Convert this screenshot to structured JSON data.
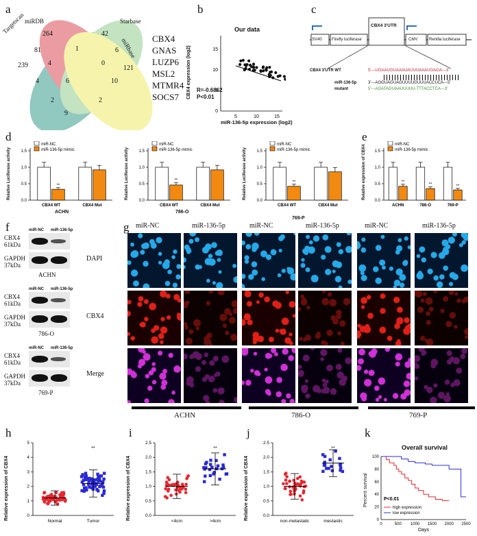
{
  "panels": {
    "a": "a",
    "b": "b",
    "c": "c",
    "d": "d",
    "e": "e",
    "f": "f",
    "g": "g",
    "h": "h",
    "i": "i",
    "j": "j",
    "k": "k"
  },
  "venn": {
    "sets": [
      "Targetscan",
      "miRDB",
      "Starbase",
      "miRbase"
    ],
    "set_colors": [
      "#4fa89a",
      "#e0606a",
      "#9fd39c",
      "#f2ee7a"
    ],
    "counts": [
      "264",
      "42",
      "239",
      "81",
      "1",
      "6",
      "121",
      "4",
      "0",
      "4",
      "6",
      "10",
      "2",
      "2",
      "9"
    ],
    "genes": [
      "CBX4",
      "GNAS",
      "LUZP6",
      "MSL2",
      "MTMR4",
      "SOCS7"
    ]
  },
  "panel_b": {
    "title": "Our data",
    "ylabel": "CBX4 expression (log2)",
    "xlabel": "miR-136-5p expression (log2)",
    "r": "R=-0.6862",
    "p": "P<0.01",
    "xticks": [
      "5",
      "10",
      "15"
    ],
    "yticks": [
      "0",
      "5",
      "10",
      "15"
    ]
  },
  "panel_c": {
    "labels": [
      "SV40",
      "Firefly luciferase",
      "CBX4 3'UTR",
      "CMV",
      "Renilla luciferase"
    ],
    "wt_label": "CBX4 3'UTR  WT",
    "wt_seq": "5'---UGAAUGUAAAUAUUUAAAUGAGA---3'",
    "mir_label": "miR-136-5p",
    "mir_seq": "3'---AGGUAGUAGUUUUGUUUACCUCA---5'",
    "mut_label": "mutant",
    "mut_seq": "5'---AGATAGUAAUUUUU-TTTACCTCA---3'"
  },
  "legend": {
    "nc": "miR-NC",
    "mimic": "miR-136-5p mimic"
  },
  "colors": {
    "nc": "#ffffff",
    "mimic": "#f28a12",
    "red_dot": "#e8262f",
    "blue_dot": "#2929d6"
  },
  "panel_d": [
    {
      "cell": "ACHN",
      "ylabel": "Relative Luciferase activity",
      "yticks": [
        "0.0",
        "0.5",
        "1.0",
        "1.5"
      ],
      "cats": [
        "CBX4 WT",
        "CBX4 Mut"
      ],
      "nc": [
        1.0,
        1.0
      ],
      "mimic": [
        0.33,
        0.92
      ],
      "sig": "**"
    },
    {
      "cell": "786-O",
      "ylabel": "Relative Luciferase activity",
      "yticks": [
        "0.0",
        "0.5",
        "1.0",
        "1.5"
      ],
      "cats": [
        "CBX4 WT",
        "CBX4 Mut"
      ],
      "nc": [
        1.0,
        1.0
      ],
      "mimic": [
        0.46,
        0.92
      ],
      "sig": "**"
    },
    {
      "cell": "769-P",
      "ylabel": "Relative Luciferase activity",
      "yticks": [
        "0.0",
        "0.5",
        "1.0",
        "1.5"
      ],
      "cats": [
        "CBX4 WT",
        "CBX4 Mut"
      ],
      "nc": [
        1.0,
        1.0
      ],
      "mimic": [
        0.42,
        0.86
      ],
      "sig": "**"
    }
  ],
  "panel_e": {
    "ylabel": "Relative expression of CBX4",
    "yticks": [
      "0.0",
      "0.5",
      "1.0",
      "1.5"
    ],
    "cats": [
      "ACHN",
      "786-O",
      "769-P"
    ],
    "nc": [
      1.0,
      1.0,
      1.0
    ],
    "mimic": [
      0.42,
      0.35,
      0.31
    ],
    "sig": "**"
  },
  "panel_f": [
    {
      "cell": "ACHN",
      "lanes": [
        "miR-NC",
        "miR-136-5p"
      ],
      "p1": "CBX4",
      "s1": "61kDa",
      "p2": "GAPDH",
      "s2": "37kDa"
    },
    {
      "cell": "786-O",
      "lanes": [
        "miR-NC",
        "miR-136-5p"
      ],
      "p1": "CBX4",
      "s1": "61kDa",
      "p2": "GAPDH",
      "s2": "37kDa"
    },
    {
      "cell": "769-P",
      "lanes": [
        "miR-NC",
        "miR-136-5p"
      ],
      "p1": "CBX4",
      "s1": "61kDa",
      "p2": "GAPDH",
      "s2": "37kDa"
    }
  ],
  "panel_g": {
    "cols": [
      "miR-NC",
      "miR-136-5p",
      "miR-NC",
      "miR-136-5p",
      "miR-NC",
      "miR-136-5p"
    ],
    "rows": [
      "DAPI",
      "CBX4",
      "Merge"
    ],
    "cells": [
      "ACHN",
      "786-O",
      "769-P"
    ]
  },
  "panel_h": {
    "ylabel": "Relative expression of CBX4",
    "yticks": [
      "0",
      "1",
      "2",
      "3",
      "4",
      "5"
    ],
    "cats": [
      "Normal",
      "Tumor"
    ],
    "means": [
      1.2,
      2.2
    ],
    "sig": "**"
  },
  "panel_i": {
    "ylabel": "Relative expression of CBX4",
    "yticks": [
      "0.0",
      "0.5",
      "1.0",
      "1.5",
      "2.0",
      "2.5"
    ],
    "cats": [
      "<4cm",
      ">4cm"
    ],
    "means": [
      1.0,
      1.6
    ],
    "sig": "**"
  },
  "panel_j": {
    "ylabel": "Relative expression of CBX4",
    "yticks": [
      "0.0",
      "0.5",
      "1.0",
      "1.5",
      "2.0",
      "2.5"
    ],
    "cats": [
      "non-metastatic",
      "mestastic"
    ],
    "means": [
      1.0,
      1.8
    ],
    "sig": "**"
  },
  "panel_k": {
    "title": "Overall survival",
    "ylabel": "Percent survival",
    "xlabel": "Days",
    "xticks": [
      "0",
      "500",
      "1000",
      "1500",
      "2000",
      "2500"
    ],
    "yticks": [
      "0",
      "20",
      "40",
      "60",
      "80",
      "100"
    ],
    "p": "P<0.01",
    "series": [
      "high expression",
      "low expression"
    ],
    "colors": [
      "#e8262f",
      "#2d2dd6"
    ]
  }
}
